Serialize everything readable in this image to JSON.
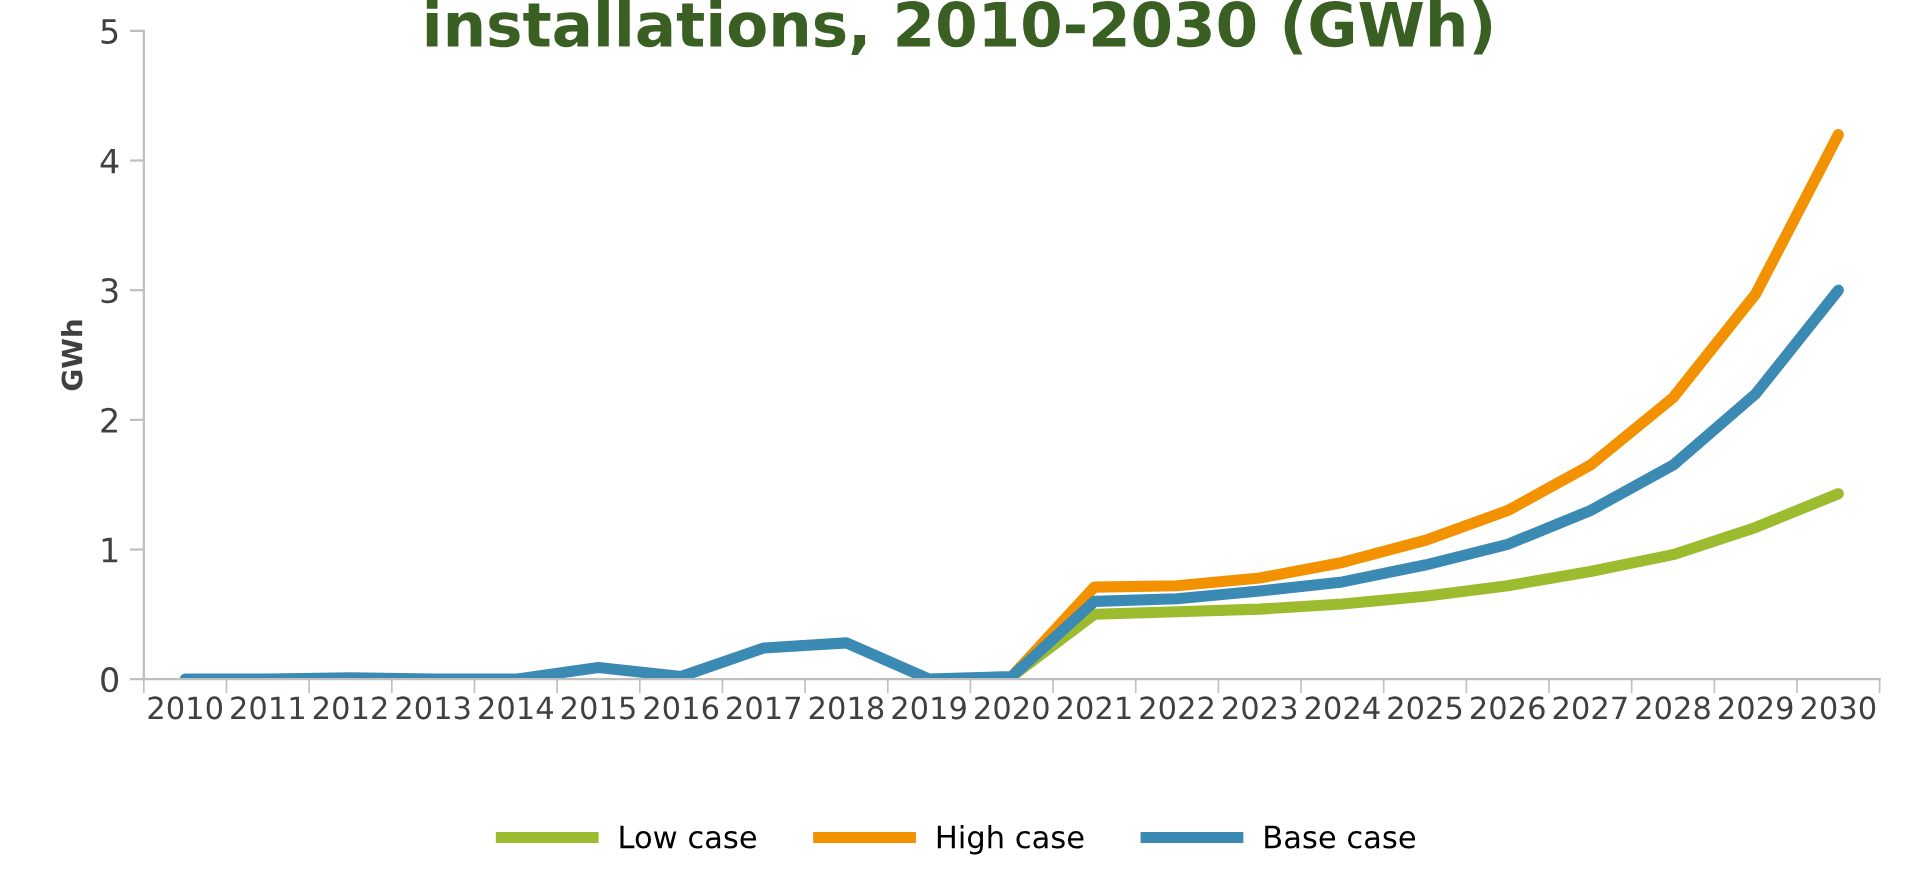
{
  "chart_data": {
    "type": "line",
    "title": "installations, 2010-2030 (GWh)",
    "ylabel": "GWh",
    "categories": [
      "2010",
      "2011",
      "2012",
      "2013",
      "2014",
      "2015",
      "2016",
      "2017",
      "2018",
      "2019",
      "2020",
      "2021",
      "2022",
      "2023",
      "2024",
      "2025",
      "2026",
      "2027",
      "2028",
      "2029",
      "2030"
    ],
    "series": [
      {
        "name": "Low case",
        "color": "#9dbb2e",
        "values": [
          null,
          null,
          null,
          null,
          null,
          null,
          null,
          null,
          null,
          null,
          0.02,
          0.5,
          0.52,
          0.54,
          0.58,
          0.64,
          0.72,
          0.83,
          0.96,
          1.17,
          1.43
        ]
      },
      {
        "name": "High case",
        "color": "#f39200",
        "values": [
          null,
          null,
          null,
          null,
          null,
          null,
          null,
          null,
          null,
          null,
          0.02,
          0.71,
          0.72,
          0.78,
          0.9,
          1.07,
          1.3,
          1.65,
          2.17,
          2.97,
          4.2
        ]
      },
      {
        "name": "Base case",
        "color": "#3b8ab4",
        "values": [
          0,
          0,
          0.01,
          0,
          0,
          0.09,
          0.02,
          0.24,
          0.28,
          0,
          0.02,
          0.6,
          0.62,
          0.68,
          0.75,
          0.88,
          1.04,
          1.3,
          1.65,
          2.2,
          3.0
        ]
      }
    ],
    "ylim": [
      0,
      5
    ],
    "yticks": [
      0,
      1,
      2,
      3,
      4,
      5
    ],
    "grid": false,
    "legend": "bottom",
    "marker": "none",
    "line_style": "solid"
  }
}
